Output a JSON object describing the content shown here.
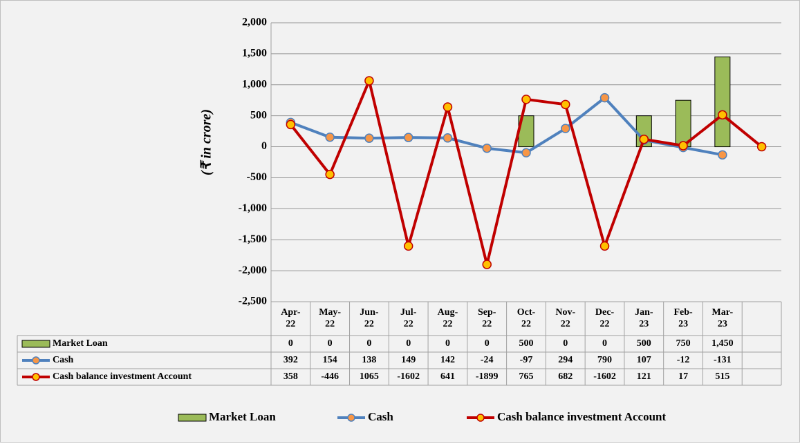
{
  "chart_data": {
    "type": "bar-line-table",
    "y_label": "(₹ in crore)",
    "categories": [
      "Apr-22",
      "May-22",
      "Jun-22",
      "Jul-22",
      "Aug-22",
      "Sep-22",
      "Oct-22",
      "Nov-22",
      "Dec-22",
      "Jan-23",
      "Feb-23",
      "Mar-23",
      null
    ],
    "ylim": [
      -2500,
      2000
    ],
    "yticks": [
      {
        "value": 2000,
        "label": "2,000"
      },
      {
        "value": 1500,
        "label": "1,500"
      },
      {
        "value": 1000,
        "label": "1,000"
      },
      500,
      0,
      -500,
      {
        "value": -1000,
        "label": "-1,000"
      },
      {
        "value": -1500,
        "label": "-1,500"
      },
      {
        "value": -2000,
        "label": "-2,000"
      },
      {
        "value": -2500,
        "label": "-2,500"
      }
    ],
    "grid": true,
    "series": [
      {
        "name": "Market Loan",
        "type": "bar",
        "color": "#9bbb59",
        "values": [
          0,
          0,
          0,
          0,
          0,
          0,
          500,
          0,
          0,
          500,
          750,
          1450,
          null
        ],
        "value_labels": [
          "0",
          "0",
          "0",
          "0",
          "0",
          "0",
          "500",
          "0",
          "0",
          "500",
          "750",
          "1,450",
          null
        ]
      },
      {
        "name": "Cash",
        "type": "line",
        "color": "#4f81bd",
        "marker": "#f79646",
        "values": [
          392,
          154,
          138,
          149,
          142,
          -24,
          -97,
          294,
          790,
          107,
          -12,
          -131,
          null
        ]
      },
      {
        "name": "Cash balance investment Account",
        "type": "line",
        "color": "#c00000",
        "marker": "#ffc000",
        "values": [
          358,
          -446,
          1065,
          -1602,
          641,
          -1899,
          765,
          682,
          -1602,
          121,
          17,
          515,
          0
        ]
      }
    ]
  }
}
